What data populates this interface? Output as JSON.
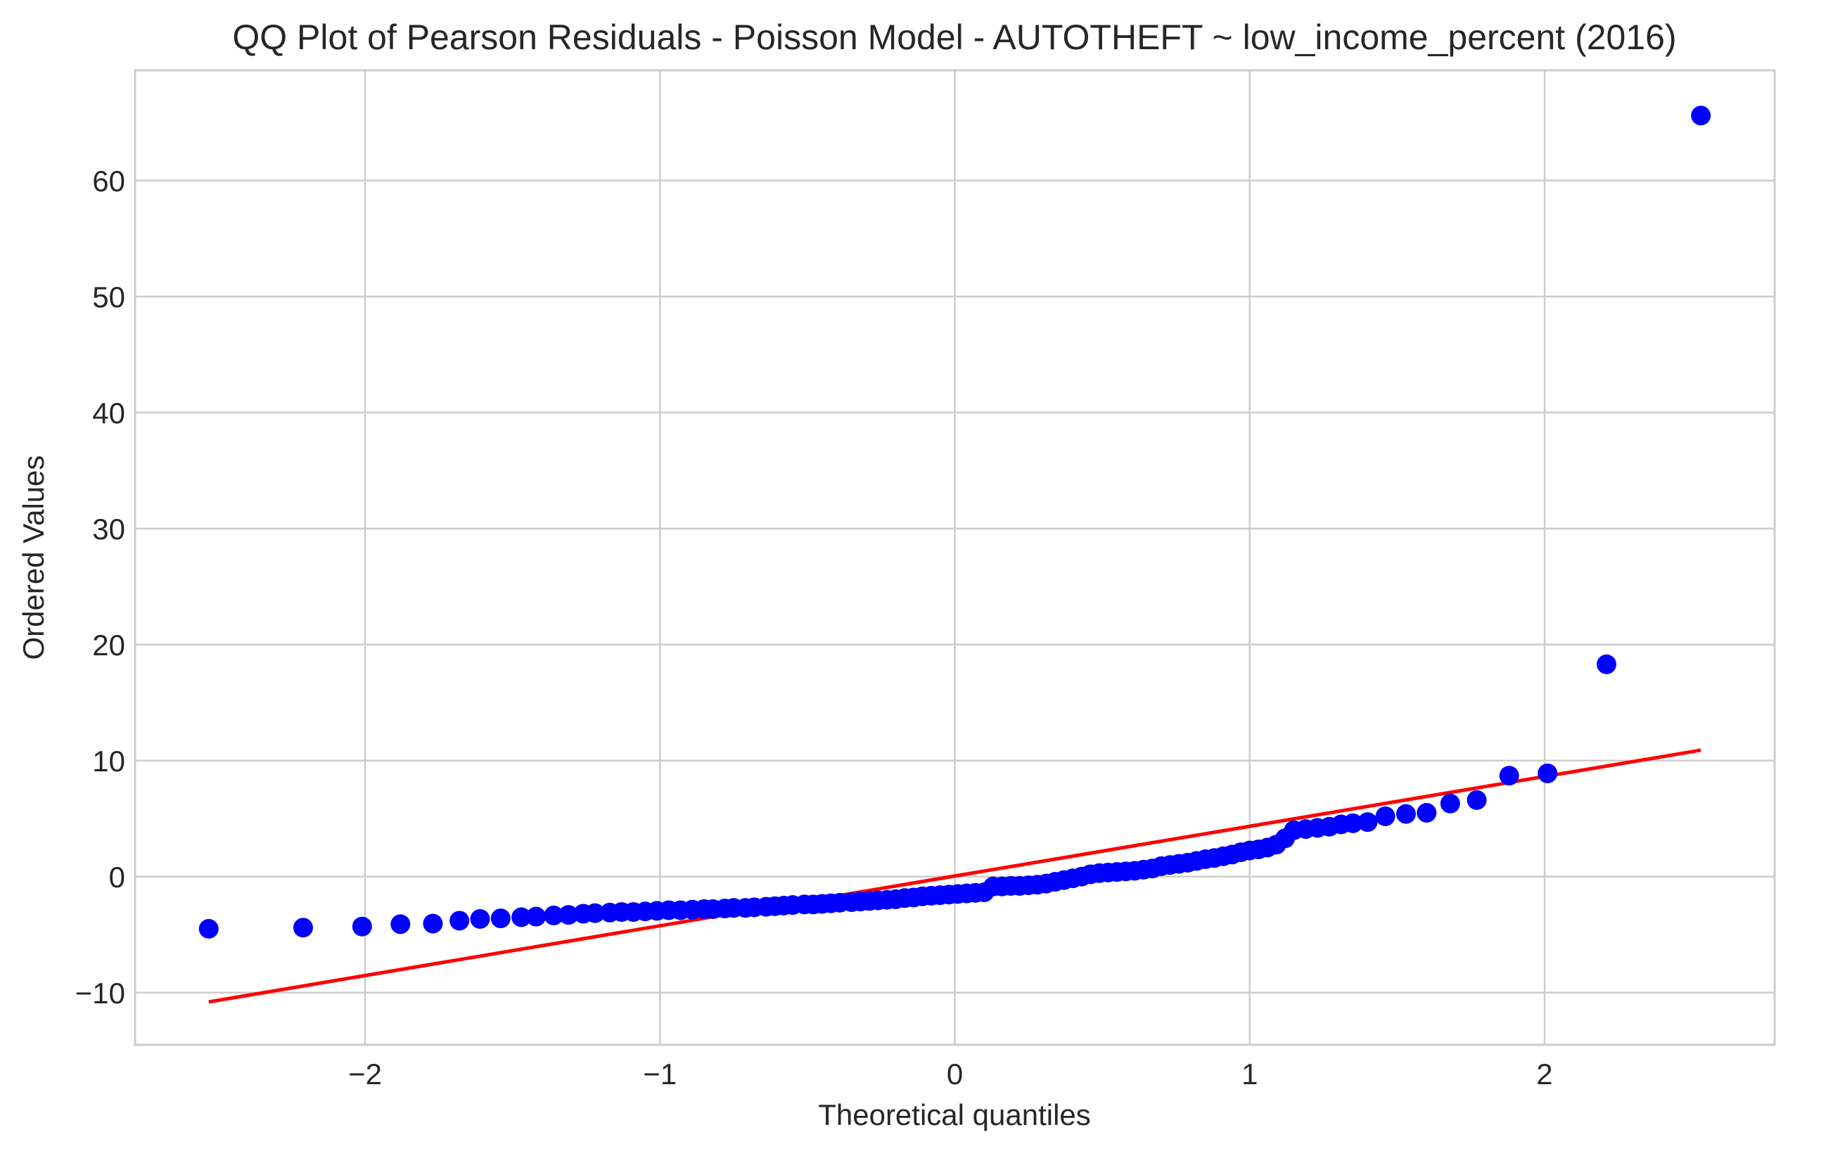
{
  "chart_data": {
    "type": "scatter",
    "title": "QQ Plot of Pearson Residuals - Poisson Model - AUTOTHEFT ~ low_income_percent (2016)",
    "xlabel": "Theoretical quantiles",
    "ylabel": "Ordered Values",
    "xlim": [
      -2.78,
      2.78
    ],
    "ylim": [
      -14.5,
      69.5
    ],
    "xticks": [
      -2,
      -1,
      0,
      1,
      2
    ],
    "xtick_labels": [
      "−2",
      "−1",
      "0",
      "1",
      "2"
    ],
    "yticks": [
      -10,
      0,
      10,
      20,
      30,
      40,
      50,
      60
    ],
    "ytick_labels": [
      "−10",
      "0",
      "10",
      "20",
      "30",
      "40",
      "50",
      "60"
    ],
    "grid": true,
    "colors": {
      "points": "#0000ff",
      "fit_line": "#ff0000",
      "grid": "#cccccc",
      "spine": "#cccccc"
    },
    "series": [
      {
        "kind": "points",
        "x": [
          -2.53,
          -2.21,
          -2.01,
          -1.88,
          -1.77,
          -1.68,
          -1.61,
          -1.54,
          -1.47,
          -1.42,
          -1.36,
          -1.31,
          -1.26,
          -1.22,
          -1.17,
          -1.13,
          -1.09,
          -1.05,
          -1.01,
          -0.97,
          -0.93,
          -0.89,
          -0.85,
          -0.82,
          -0.78,
          -0.75,
          -0.71,
          -0.68,
          -0.64,
          -0.61,
          -0.58,
          -0.55,
          -0.51,
          -0.48,
          -0.45,
          -0.42,
          -0.39,
          -0.35,
          -0.32,
          -0.29,
          -0.26,
          -0.23,
          -0.2,
          -0.17,
          -0.14,
          -0.11,
          -0.08,
          -0.05,
          -0.02,
          0.01,
          0.04,
          0.07,
          0.1,
          0.13,
          0.16,
          0.19,
          0.22,
          0.25,
          0.28,
          0.31,
          0.34,
          0.37,
          0.4,
          0.43,
          0.46,
          0.49,
          0.52,
          0.55,
          0.58,
          0.61,
          0.64,
          0.67,
          0.7,
          0.73,
          0.76,
          0.79,
          0.82,
          0.85,
          0.88,
          0.91,
          0.94,
          0.97,
          1.0,
          1.03,
          1.06,
          1.09,
          1.12,
          1.15,
          1.19,
          1.23,
          1.27,
          1.31,
          1.35,
          1.4,
          1.46,
          1.53,
          1.6,
          1.68,
          1.77,
          1.88,
          2.01,
          2.21,
          2.53
        ],
        "y": [
          -4.5,
          -4.4,
          -4.3,
          -4.1,
          -4.05,
          -3.8,
          -3.65,
          -3.6,
          -3.5,
          -3.45,
          -3.35,
          -3.3,
          -3.2,
          -3.15,
          -3.1,
          -3.05,
          -3.05,
          -3.0,
          -2.95,
          -2.9,
          -2.9,
          -2.85,
          -2.8,
          -2.8,
          -2.75,
          -2.7,
          -2.7,
          -2.65,
          -2.6,
          -2.55,
          -2.5,
          -2.45,
          -2.4,
          -2.4,
          -2.35,
          -2.3,
          -2.25,
          -2.2,
          -2.15,
          -2.1,
          -2.05,
          -2.0,
          -1.95,
          -1.85,
          -1.8,
          -1.7,
          -1.65,
          -1.6,
          -1.55,
          -1.5,
          -1.45,
          -1.4,
          -1.35,
          -0.85,
          -0.85,
          -0.8,
          -0.8,
          -0.75,
          -0.7,
          -0.6,
          -0.45,
          -0.3,
          -0.15,
          0.0,
          0.2,
          0.3,
          0.35,
          0.4,
          0.45,
          0.5,
          0.6,
          0.7,
          0.9,
          1.0,
          1.1,
          1.2,
          1.35,
          1.5,
          1.6,
          1.75,
          1.9,
          2.1,
          2.25,
          2.35,
          2.5,
          2.75,
          3.3,
          4.0,
          4.1,
          4.2,
          4.3,
          4.5,
          4.6,
          4.7,
          5.2,
          5.4,
          5.5,
          6.3,
          6.6,
          8.7,
          8.9,
          18.3,
          65.6
        ]
      },
      {
        "kind": "fit_line",
        "x": [
          -2.53,
          2.53
        ],
        "y": [
          -10.8,
          10.9
        ]
      }
    ]
  }
}
